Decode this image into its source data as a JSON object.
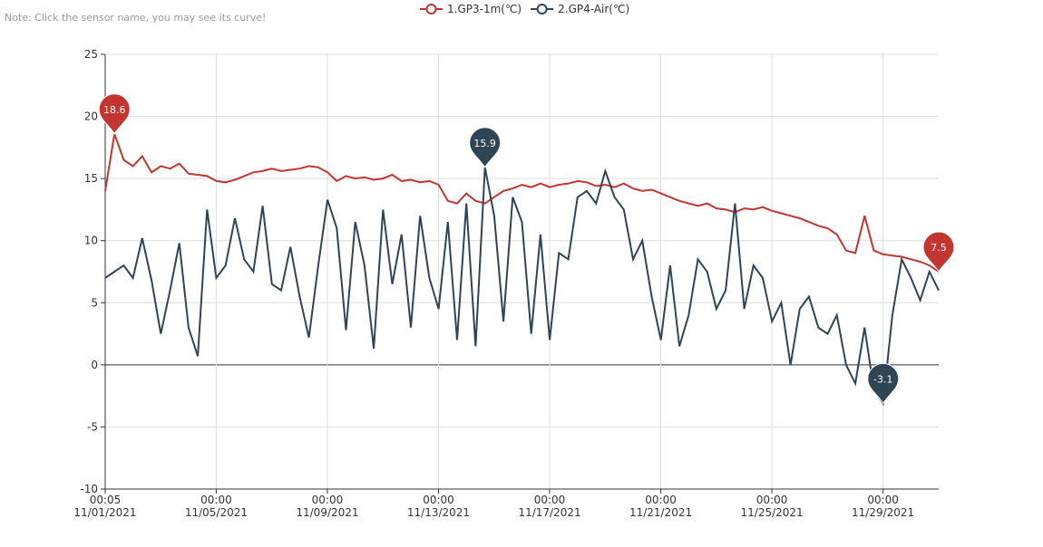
{
  "note": "Note: Click the sensor name, you may see its curve!",
  "chart_data": {
    "type": "line",
    "x": [
      "11/01/2021 00:05",
      "11/01/2021 08:05",
      "11/01/2021 16:05",
      "11/02/2021 00:05",
      "11/02/2021 08:05",
      "11/02/2021 16:05",
      "11/03/2021 00:05",
      "11/03/2021 08:05",
      "11/03/2021 16:05",
      "11/04/2021 00:05",
      "11/04/2021 08:05",
      "11/04/2021 16:05",
      "11/05/2021 00:05",
      "11/05/2021 08:05",
      "11/05/2021 16:05",
      "11/06/2021 00:05",
      "11/06/2021 08:05",
      "11/06/2021 16:05",
      "11/07/2021 00:05",
      "11/07/2021 08:05",
      "11/07/2021 16:05",
      "11/08/2021 00:05",
      "11/08/2021 08:05",
      "11/08/2021 16:05",
      "11/09/2021 00:05",
      "11/09/2021 08:05",
      "11/09/2021 16:05",
      "11/10/2021 00:05",
      "11/10/2021 08:05",
      "11/10/2021 16:05",
      "11/11/2021 00:05",
      "11/11/2021 08:05",
      "11/11/2021 16:05",
      "11/12/2021 00:05",
      "11/12/2021 08:05",
      "11/12/2021 16:05",
      "11/13/2021 00:05",
      "11/13/2021 08:05",
      "11/13/2021 16:05",
      "11/14/2021 00:05",
      "11/14/2021 08:05",
      "11/14/2021 16:05",
      "11/15/2021 00:05",
      "11/15/2021 08:05",
      "11/15/2021 16:05",
      "11/16/2021 00:05",
      "11/16/2021 08:05",
      "11/16/2021 16:05",
      "11/17/2021 00:05",
      "11/17/2021 08:05",
      "11/17/2021 16:05",
      "11/18/2021 00:05",
      "11/18/2021 08:05",
      "11/18/2021 16:05",
      "11/19/2021 00:05",
      "11/19/2021 08:05",
      "11/19/2021 16:05",
      "11/20/2021 00:05",
      "11/20/2021 08:05",
      "11/20/2021 16:05",
      "11/21/2021 00:05",
      "11/21/2021 08:05",
      "11/21/2021 16:05",
      "11/22/2021 00:05",
      "11/22/2021 08:05",
      "11/22/2021 16:05",
      "11/23/2021 00:05",
      "11/23/2021 08:05",
      "11/23/2021 16:05",
      "11/24/2021 00:05",
      "11/24/2021 08:05",
      "11/24/2021 16:05",
      "11/25/2021 00:05",
      "11/25/2021 08:05",
      "11/25/2021 16:05",
      "11/26/2021 00:05",
      "11/26/2021 08:05",
      "11/26/2021 16:05",
      "11/27/2021 00:05",
      "11/27/2021 08:05",
      "11/27/2021 16:05",
      "11/28/2021 00:05",
      "11/28/2021 08:05",
      "11/28/2021 16:05",
      "11/29/2021 00:05",
      "11/29/2021 08:05",
      "11/29/2021 16:05",
      "11/30/2021 00:05",
      "11/30/2021 08:05",
      "11/30/2021 16:05",
      "12/01/2021 00:05"
    ],
    "series": [
      {
        "name": "1.GP3-1m(℃)",
        "color": "#c23531",
        "values": [
          14.0,
          18.6,
          16.5,
          16.0,
          16.8,
          15.5,
          16.0,
          15.8,
          16.2,
          15.4,
          15.3,
          15.2,
          14.8,
          14.7,
          14.9,
          15.2,
          15.5,
          15.6,
          15.8,
          15.6,
          15.7,
          15.8,
          16.0,
          15.9,
          15.5,
          14.8,
          15.2,
          15.0,
          15.1,
          14.9,
          15.0,
          15.3,
          14.8,
          14.9,
          14.7,
          14.8,
          14.5,
          13.2,
          13.0,
          13.8,
          13.2,
          13.0,
          13.5,
          14.0,
          14.2,
          14.5,
          14.3,
          14.6,
          14.3,
          14.5,
          14.6,
          14.8,
          14.7,
          14.4,
          14.5,
          14.3,
          14.6,
          14.2,
          14.0,
          14.1,
          13.8,
          13.5,
          13.2,
          13.0,
          12.8,
          13.0,
          12.6,
          12.5,
          12.3,
          12.6,
          12.5,
          12.7,
          12.4,
          12.2,
          12.0,
          11.8,
          11.5,
          11.2,
          11.0,
          10.5,
          9.2,
          9.0,
          12.0,
          9.2,
          8.9,
          8.8,
          8.7,
          8.5,
          8.3,
          8.0,
          7.5
        ]
      },
      {
        "name": "2.GP4-Air(℃)",
        "color": "#2f4554",
        "values": [
          7.0,
          7.5,
          8.0,
          7.0,
          10.2,
          6.8,
          2.5,
          6.0,
          9.8,
          3.0,
          0.7,
          12.5,
          7.0,
          8.0,
          11.8,
          8.5,
          7.5,
          12.8,
          6.5,
          6.0,
          9.5,
          5.5,
          2.2,
          8.0,
          13.3,
          11.0,
          2.8,
          11.5,
          8.0,
          1.3,
          12.5,
          6.5,
          10.5,
          3.0,
          12.0,
          7.0,
          4.5,
          11.5,
          2.0,
          13.0,
          1.5,
          15.9,
          12.0,
          3.5,
          13.5,
          11.5,
          2.5,
          10.5,
          2.0,
          9.0,
          8.5,
          13.5,
          14.0,
          13.0,
          15.6,
          13.5,
          12.5,
          8.5,
          10.0,
          5.5,
          2.0,
          8.0,
          1.5,
          4.0,
          8.5,
          7.5,
          4.5,
          6.0,
          13.0,
          4.5,
          8.0,
          7.0,
          3.5,
          5.0,
          0.0,
          4.5,
          5.5,
          3.0,
          2.5,
          4.0,
          0.0,
          -1.5,
          3.0,
          -2.0,
          -3.1,
          4.0,
          8.5,
          7.0,
          5.2,
          7.5,
          6.0
        ]
      }
    ],
    "xlim": [
      "11/01/2021 00:05",
      "12/01/2021 00:05"
    ],
    "xticks": [
      {
        "value": "11/01/2021 00:05",
        "label": "00:05\n11/01/2021"
      },
      {
        "value": "11/05/2021 00:00",
        "label": "00:00\n11/05/2021"
      },
      {
        "value": "11/09/2021 00:00",
        "label": "00:00\n11/09/2021"
      },
      {
        "value": "11/13/2021 00:00",
        "label": "00:00\n11/13/2021"
      },
      {
        "value": "11/17/2021 00:00",
        "label": "00:00\n11/17/2021"
      },
      {
        "value": "11/21/2021 00:00",
        "label": "00:00\n11/21/2021"
      },
      {
        "value": "11/25/2021 00:00",
        "label": "00:00\n11/25/2021"
      },
      {
        "value": "11/29/2021 00:00",
        "label": "00:00\n11/29/2021"
      }
    ],
    "ylim": [
      -10,
      25
    ],
    "yticks": [
      -10,
      -5,
      0,
      5,
      10,
      15,
      20,
      25
    ],
    "grid": true,
    "legend": "top"
  }
}
